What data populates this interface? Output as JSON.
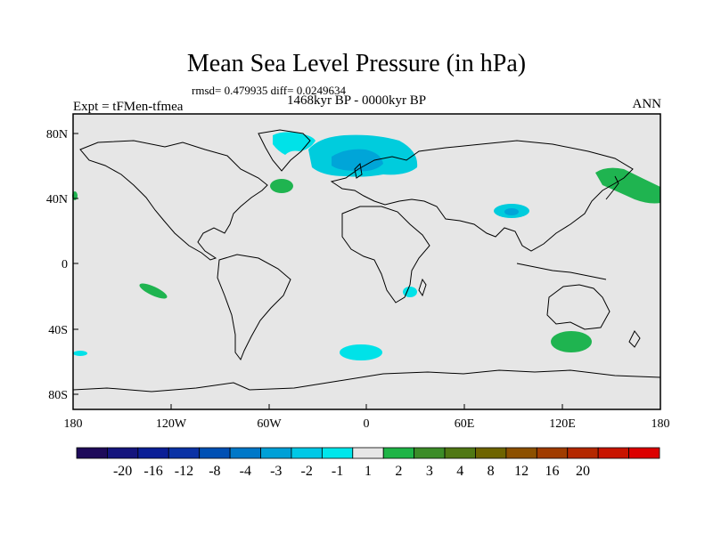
{
  "title": "Mean Sea Level Pressure (in hPa)",
  "stats": "rmsd= 0.479935 diff= 0.0249634",
  "period": "1468kyr BP - 0000kyr BP",
  "experiment": "Expt = tFMen-tfmea",
  "season": "ANN",
  "map": {
    "x_ticks": [
      "180",
      "120W",
      "60W",
      "0",
      "60E",
      "120E",
      "180"
    ],
    "y_ticks": [
      "80N",
      "40N",
      "0",
      "40S",
      "80S"
    ],
    "background_color": "#e6e6e6",
    "anomalies": [
      {
        "region": "North Atlantic / Scandinavia",
        "lon": 10,
        "lat": 65,
        "level": "-2",
        "color": "#00ccdd"
      },
      {
        "region": "North Atlantic / Scandinavia core",
        "lon": 5,
        "lat": 66,
        "level": "-3",
        "color": "#00a5d8"
      },
      {
        "region": "Greenland",
        "lon": -40,
        "lat": 75,
        "level": "-1",
        "color": "#00e2e8"
      },
      {
        "region": "Newfoundland",
        "lon": -55,
        "lat": 47,
        "level": "2",
        "color": "#1fb450"
      },
      {
        "region": "Tibet",
        "lon": 90,
        "lat": 32,
        "level": "-2",
        "color": "#00ccdd"
      },
      {
        "region": "North Pacific",
        "lon": 160,
        "lat": 45,
        "level": "2",
        "color": "#1fb450"
      },
      {
        "region": "South Pacific",
        "lon": -135,
        "lat": -17,
        "level": "2",
        "color": "#1fb450"
      },
      {
        "region": "Mozambique Channel",
        "lon": 30,
        "lat": -20,
        "level": "-1",
        "color": "#00e2e8"
      },
      {
        "region": "South Atlantic",
        "lon": 0,
        "lat": -55,
        "level": "-1",
        "color": "#00e2e8"
      },
      {
        "region": "Southern Ocean south of Australia",
        "lon": 125,
        "lat": -50,
        "level": "2",
        "color": "#1fb450"
      },
      {
        "region": "East Pacific south",
        "lon": -180,
        "lat": -55,
        "level": "-1",
        "color": "#00e2e8"
      }
    ]
  },
  "colorbar": {
    "levels": [
      "-20",
      "-16",
      "-12",
      "-8",
      "-4",
      "-3",
      "-2",
      "-1",
      "1",
      "2",
      "3",
      "4",
      "8",
      "12",
      "16",
      "20"
    ],
    "colors": [
      "#1e0a5a",
      "#14147d",
      "#0a1e96",
      "#0a32a5",
      "#0050b4",
      "#0078c8",
      "#00a0d7",
      "#00c8e6",
      "#00e6eb",
      "#e6e6e6",
      "#1eb446",
      "#3c8c28",
      "#507814",
      "#6e6400",
      "#8c5000",
      "#a03c00",
      "#b42800",
      "#c81400",
      "#dc0000"
    ]
  }
}
